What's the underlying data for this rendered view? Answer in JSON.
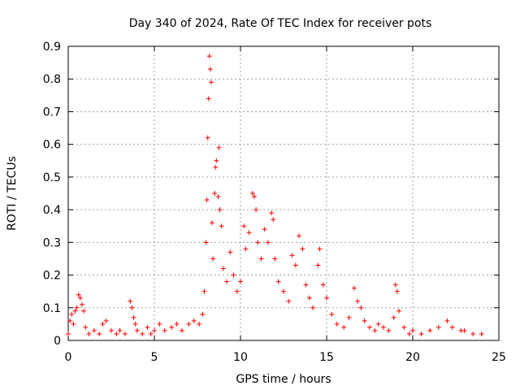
{
  "chart_data": {
    "type": "scatter",
    "title": "Day 340 of 2024, Rate Of TEC Index for receiver pots",
    "xlabel": "GPS time / hours",
    "ylabel": "ROTI / TECUs",
    "xlim": [
      0,
      25
    ],
    "ylim": [
      0,
      0.9
    ],
    "xticks": [
      "0",
      "5",
      "10",
      "15",
      "20",
      "25"
    ],
    "yticks": [
      "0",
      "0.1",
      "0.2",
      "0.3",
      "0.4",
      "0.5",
      "0.6",
      "0.7",
      "0.8",
      "0.9"
    ],
    "xtick_values": [
      0,
      5,
      10,
      15,
      20,
      25
    ],
    "ytick_values": [
      0,
      0.1,
      0.2,
      0.3,
      0.4,
      0.5,
      0.6,
      0.7,
      0.8,
      0.9
    ],
    "grid": true,
    "marker": "plus",
    "color": "#ff0000",
    "series": [
      {
        "points": [
          [
            0.0,
            0.02
          ],
          [
            0.1,
            0.06
          ],
          [
            0.2,
            0.08
          ],
          [
            0.3,
            0.05
          ],
          [
            0.4,
            0.09
          ],
          [
            0.5,
            0.1
          ],
          [
            0.6,
            0.14
          ],
          [
            0.7,
            0.13
          ],
          [
            0.8,
            0.11
          ],
          [
            0.9,
            0.09
          ],
          [
            1.0,
            0.04
          ],
          [
            1.2,
            0.02
          ],
          [
            1.5,
            0.03
          ],
          [
            1.8,
            0.02
          ],
          [
            2.0,
            0.05
          ],
          [
            2.2,
            0.06
          ],
          [
            2.5,
            0.03
          ],
          [
            2.8,
            0.02
          ],
          [
            3.0,
            0.03
          ],
          [
            3.3,
            0.02
          ],
          [
            3.6,
            0.12
          ],
          [
            3.7,
            0.1
          ],
          [
            3.8,
            0.07
          ],
          [
            3.9,
            0.05
          ],
          [
            4.0,
            0.03
          ],
          [
            4.3,
            0.02
          ],
          [
            4.6,
            0.04
          ],
          [
            4.8,
            0.02
          ],
          [
            5.0,
            0.03
          ],
          [
            5.3,
            0.05
          ],
          [
            5.6,
            0.03
          ],
          [
            6.0,
            0.04
          ],
          [
            6.3,
            0.05
          ],
          [
            6.6,
            0.03
          ],
          [
            7.0,
            0.05
          ],
          [
            7.3,
            0.06
          ],
          [
            7.6,
            0.05
          ],
          [
            7.8,
            0.08
          ],
          [
            7.9,
            0.15
          ],
          [
            8.0,
            0.3
          ],
          [
            8.05,
            0.43
          ],
          [
            8.1,
            0.62
          ],
          [
            8.15,
            0.74
          ],
          [
            8.2,
            0.87
          ],
          [
            8.25,
            0.83
          ],
          [
            8.3,
            0.79
          ],
          [
            8.35,
            0.36
          ],
          [
            8.4,
            0.25
          ],
          [
            8.5,
            0.45
          ],
          [
            8.55,
            0.53
          ],
          [
            8.6,
            0.55
          ],
          [
            8.7,
            0.44
          ],
          [
            8.75,
            0.59
          ],
          [
            8.8,
            0.4
          ],
          [
            8.9,
            0.35
          ],
          [
            9.0,
            0.22
          ],
          [
            9.2,
            0.18
          ],
          [
            9.4,
            0.27
          ],
          [
            9.6,
            0.2
          ],
          [
            9.8,
            0.15
          ],
          [
            10.0,
            0.18
          ],
          [
            10.2,
            0.35
          ],
          [
            10.3,
            0.28
          ],
          [
            10.5,
            0.33
          ],
          [
            10.7,
            0.45
          ],
          [
            10.8,
            0.44
          ],
          [
            10.9,
            0.4
          ],
          [
            11.0,
            0.3
          ],
          [
            11.2,
            0.25
          ],
          [
            11.4,
            0.34
          ],
          [
            11.6,
            0.3
          ],
          [
            11.8,
            0.39
          ],
          [
            11.9,
            0.37
          ],
          [
            12.0,
            0.25
          ],
          [
            12.2,
            0.18
          ],
          [
            12.5,
            0.15
          ],
          [
            12.8,
            0.12
          ],
          [
            13.0,
            0.26
          ],
          [
            13.2,
            0.23
          ],
          [
            13.4,
            0.32
          ],
          [
            13.6,
            0.28
          ],
          [
            13.8,
            0.17
          ],
          [
            14.0,
            0.13
          ],
          [
            14.2,
            0.1
          ],
          [
            14.5,
            0.23
          ],
          [
            14.6,
            0.28
          ],
          [
            14.8,
            0.17
          ],
          [
            15.0,
            0.13
          ],
          [
            15.3,
            0.08
          ],
          [
            15.6,
            0.05
          ],
          [
            16.0,
            0.04
          ],
          [
            16.3,
            0.07
          ],
          [
            16.6,
            0.16
          ],
          [
            16.8,
            0.12
          ],
          [
            17.0,
            0.1
          ],
          [
            17.2,
            0.06
          ],
          [
            17.5,
            0.04
          ],
          [
            17.8,
            0.03
          ],
          [
            18.0,
            0.05
          ],
          [
            18.3,
            0.04
          ],
          [
            18.6,
            0.03
          ],
          [
            18.9,
            0.07
          ],
          [
            19.0,
            0.17
          ],
          [
            19.1,
            0.15
          ],
          [
            19.2,
            0.09
          ],
          [
            19.5,
            0.04
          ],
          [
            19.8,
            0.02
          ],
          [
            20.0,
            0.03
          ],
          [
            20.5,
            0.02
          ],
          [
            21.0,
            0.03
          ],
          [
            21.5,
            0.04
          ],
          [
            22.0,
            0.06
          ],
          [
            22.3,
            0.04
          ],
          [
            22.8,
            0.03
          ],
          [
            23.0,
            0.03
          ],
          [
            23.5,
            0.02
          ],
          [
            24.0,
            0.02
          ]
        ]
      }
    ]
  }
}
